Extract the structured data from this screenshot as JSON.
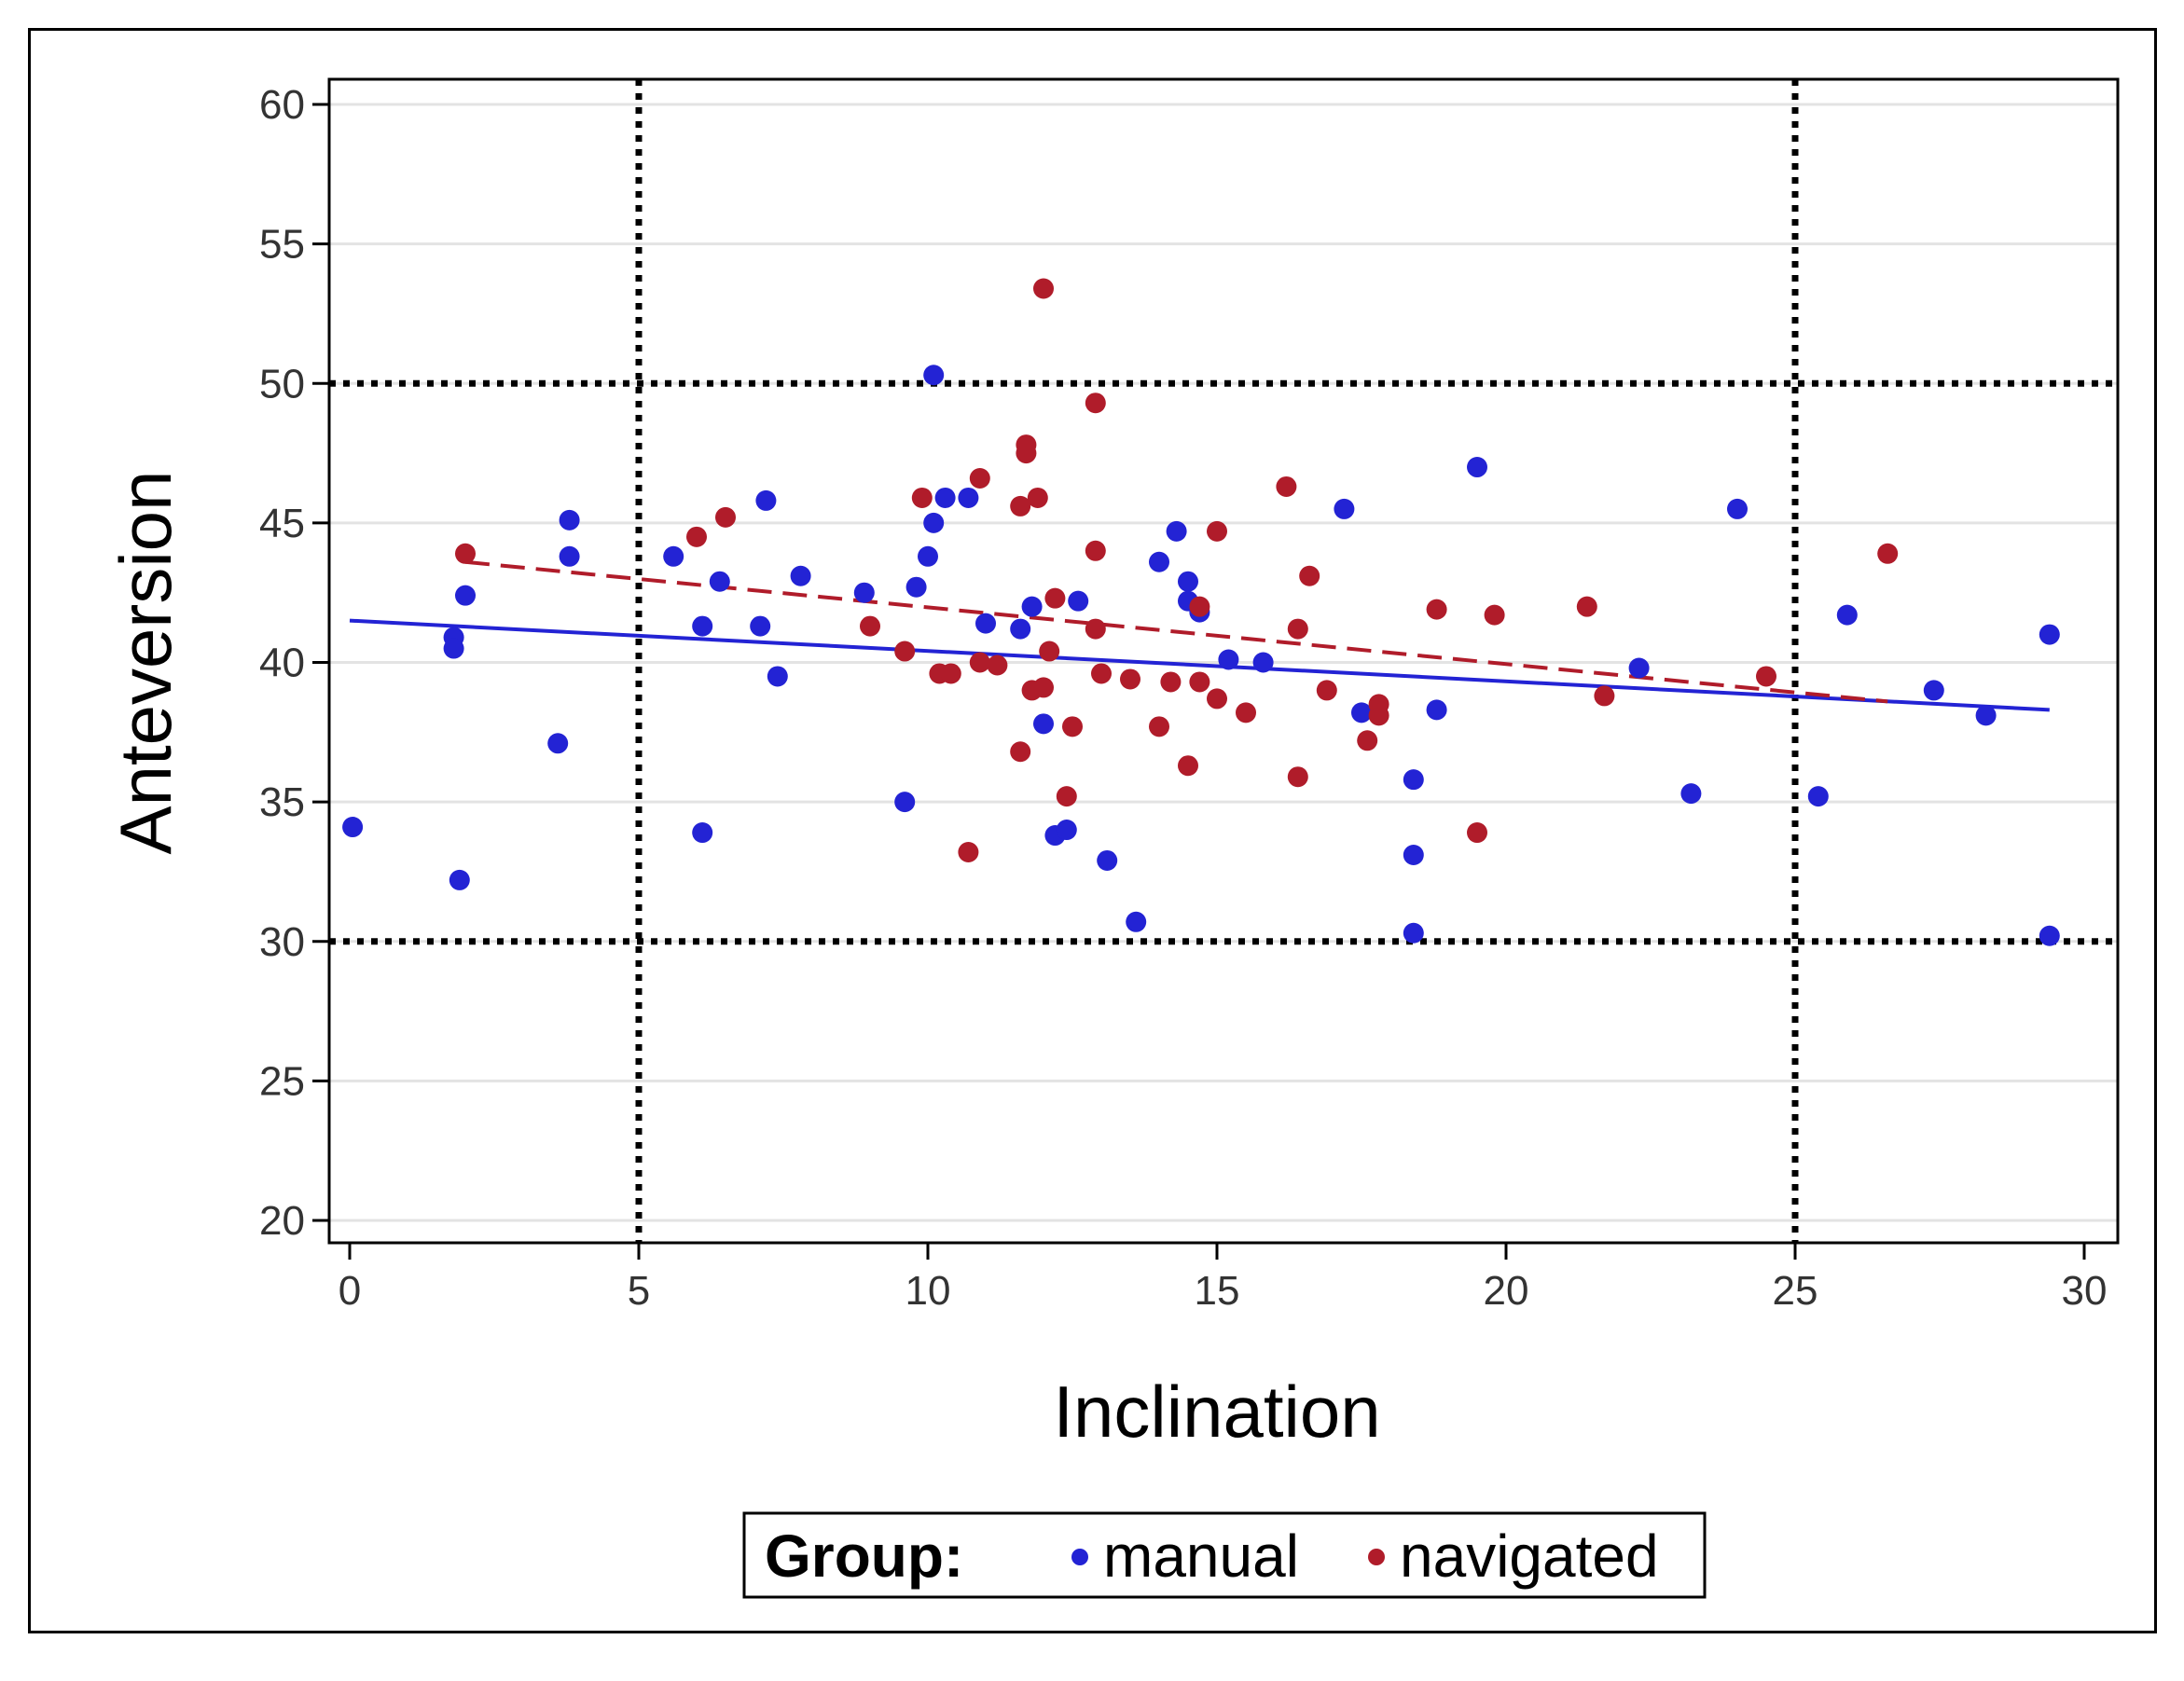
{
  "chart_data": {
    "type": "scatter",
    "xlabel": "Inclination",
    "ylabel": "Anteversion",
    "xlim": [
      0,
      30
    ],
    "ylim": [
      20,
      60
    ],
    "x_ticks": [
      "0",
      "5",
      "10",
      "15",
      "20",
      "25",
      "30"
    ],
    "y_ticks": [
      "20",
      "25",
      "30",
      "35",
      "40",
      "45",
      "50",
      "55",
      "60"
    ],
    "grid": true,
    "reference_lines": {
      "x": [
        5,
        25
      ],
      "y": [
        30,
        50
      ],
      "style": "dotted"
    },
    "legend": {
      "title": "Group:",
      "placement": "bottom",
      "entries": [
        "manual",
        "navigated"
      ]
    },
    "colors": {
      "manual": "#2323d4",
      "navigated": "#b01c2a"
    },
    "series": [
      {
        "name": "manual",
        "points": [
          [
            0.05,
            34.1
          ],
          [
            1.8,
            40.9
          ],
          [
            1.8,
            40.5
          ],
          [
            1.9,
            32.2
          ],
          [
            2.0,
            42.4
          ],
          [
            3.6,
            37.1
          ],
          [
            3.8,
            43.8
          ],
          [
            3.8,
            45.1
          ],
          [
            5.6,
            43.8
          ],
          [
            6.1,
            41.3
          ],
          [
            6.1,
            33.9
          ],
          [
            6.4,
            42.9
          ],
          [
            7.1,
            41.3
          ],
          [
            7.2,
            45.8
          ],
          [
            7.4,
            39.5
          ],
          [
            7.8,
            43.1
          ],
          [
            8.9,
            42.5
          ],
          [
            9.6,
            35.0
          ],
          [
            9.8,
            42.7
          ],
          [
            10.0,
            43.8
          ],
          [
            10.1,
            50.3
          ],
          [
            10.1,
            45.0
          ],
          [
            10.3,
            45.9
          ],
          [
            10.7,
            45.9
          ],
          [
            11.0,
            41.4
          ],
          [
            11.6,
            41.2
          ],
          [
            11.8,
            42.0
          ],
          [
            12.0,
            37.8
          ],
          [
            12.2,
            33.8
          ],
          [
            12.4,
            34.0
          ],
          [
            12.6,
            42.2
          ],
          [
            13.1,
            32.9
          ],
          [
            13.6,
            30.7
          ],
          [
            14.0,
            43.6
          ],
          [
            14.3,
            44.7
          ],
          [
            14.5,
            42.9
          ],
          [
            14.5,
            42.2
          ],
          [
            14.7,
            41.8
          ],
          [
            15.2,
            40.1
          ],
          [
            15.8,
            40.0
          ],
          [
            17.2,
            45.5
          ],
          [
            17.5,
            38.2
          ],
          [
            18.4,
            35.8
          ],
          [
            18.4,
            33.1
          ],
          [
            18.4,
            30.3
          ],
          [
            18.8,
            38.3
          ],
          [
            19.5,
            47.0
          ],
          [
            22.3,
            39.8
          ],
          [
            23.2,
            35.3
          ],
          [
            24.0,
            45.5
          ],
          [
            25.4,
            35.2
          ],
          [
            25.9,
            41.7
          ],
          [
            27.4,
            39.0
          ],
          [
            28.3,
            38.1
          ],
          [
            29.4,
            41.0
          ],
          [
            29.4,
            30.2
          ]
        ],
        "trend": {
          "x": [
            0,
            29.4
          ],
          "y": [
            41.5,
            38.3
          ],
          "style": "solid"
        }
      },
      {
        "name": "navigated",
        "points": [
          [
            2.0,
            43.9
          ],
          [
            6.0,
            44.5
          ],
          [
            6.5,
            45.2
          ],
          [
            9.0,
            41.3
          ],
          [
            9.6,
            40.4
          ],
          [
            9.9,
            45.9
          ],
          [
            10.2,
            39.6
          ],
          [
            10.4,
            39.6
          ],
          [
            10.7,
            33.2
          ],
          [
            10.9,
            40.0
          ],
          [
            10.9,
            46.6
          ],
          [
            11.2,
            39.9
          ],
          [
            11.6,
            45.6
          ],
          [
            11.6,
            36.8
          ],
          [
            11.7,
            47.8
          ],
          [
            11.7,
            47.5
          ],
          [
            11.8,
            39.0
          ],
          [
            11.9,
            45.9
          ],
          [
            12.0,
            53.4
          ],
          [
            12.0,
            39.1
          ],
          [
            12.1,
            40.4
          ],
          [
            12.2,
            42.3
          ],
          [
            12.4,
            35.2
          ],
          [
            12.5,
            37.7
          ],
          [
            12.9,
            49.3
          ],
          [
            12.9,
            44.0
          ],
          [
            12.9,
            41.2
          ],
          [
            13.0,
            39.6
          ],
          [
            13.5,
            39.4
          ],
          [
            14.0,
            37.7
          ],
          [
            14.2,
            39.3
          ],
          [
            14.5,
            36.3
          ],
          [
            14.7,
            42.0
          ],
          [
            14.7,
            39.3
          ],
          [
            15.0,
            44.7
          ],
          [
            15.0,
            38.7
          ],
          [
            15.5,
            38.2
          ],
          [
            16.2,
            46.3
          ],
          [
            16.4,
            41.2
          ],
          [
            16.4,
            35.9
          ],
          [
            16.6,
            43.1
          ],
          [
            16.9,
            39.0
          ],
          [
            17.6,
            37.2
          ],
          [
            17.8,
            38.5
          ],
          [
            17.8,
            38.1
          ],
          [
            18.8,
            41.9
          ],
          [
            19.5,
            33.9
          ],
          [
            19.8,
            41.7
          ],
          [
            21.4,
            42.0
          ],
          [
            21.7,
            38.8
          ],
          [
            24.5,
            39.5
          ],
          [
            26.6,
            43.9
          ]
        ],
        "trend": {
          "x": [
            2.0,
            26.6
          ],
          "y": [
            43.6,
            38.6
          ],
          "style": "dashed"
        }
      }
    ]
  }
}
